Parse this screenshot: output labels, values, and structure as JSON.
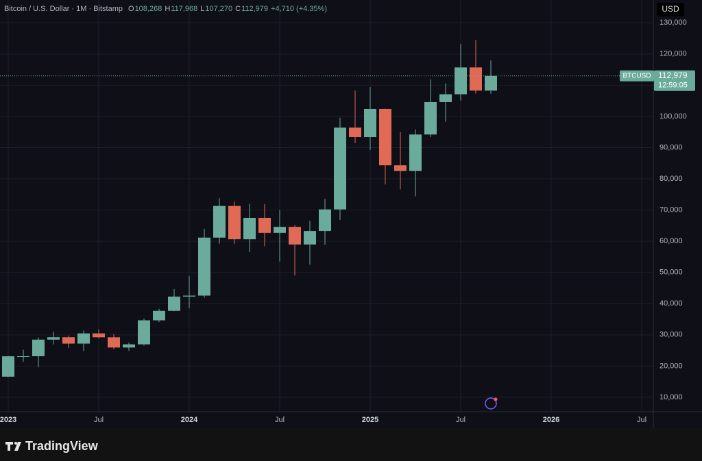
{
  "header": {
    "symbol": "Bitcoin / U.S. Dollar · 1M · Bitstamp",
    "ohlc": [
      {
        "key": "O",
        "value": "108,268"
      },
      {
        "key": "H",
        "value": "117,968"
      },
      {
        "key": "L",
        "value": "107,270"
      },
      {
        "key": "C",
        "value": "112,979"
      }
    ],
    "change": "+4,710 (+4.35%)"
  },
  "currency": "USD",
  "price_label": {
    "symbol": "BTCUSD",
    "price": "112,979",
    "countdown": "12:59:05"
  },
  "brand": "TradingView",
  "chart_data": {
    "type": "candlestick",
    "x": [
      "2023-01",
      "2023-02",
      "2023-03",
      "2023-04",
      "2023-05",
      "2023-06",
      "2023-07",
      "2023-08",
      "2023-09",
      "2023-10",
      "2023-11",
      "2023-12",
      "2024-01",
      "2024-02",
      "2024-03",
      "2024-04",
      "2024-05",
      "2024-06",
      "2024-07",
      "2024-08",
      "2024-09",
      "2024-10",
      "2024-11",
      "2024-12",
      "2025-01",
      "2025-02",
      "2025-03",
      "2025-04",
      "2025-05",
      "2025-06",
      "2025-07",
      "2025-08",
      "2025-09"
    ],
    "open": [
      16600,
      23130,
      23150,
      28470,
      29250,
      27200,
      30470,
      29230,
      25940,
      26960,
      34660,
      37700,
      42260,
      42580,
      61160,
      71300,
      60650,
      67500,
      62700,
      64600,
      58950,
      63300,
      70200,
      96400,
      93400,
      102400,
      84350,
      82500,
      94200,
      104600,
      107100,
      115700,
      108268
    ],
    "high": [
      23300,
      25250,
      29200,
      31000,
      29800,
      31400,
      31800,
      30200,
      27500,
      35200,
      38400,
      44700,
      48900,
      64000,
      73800,
      72700,
      72000,
      71950,
      70000,
      65100,
      66500,
      73600,
      99600,
      108300,
      109400,
      102500,
      95000,
      95800,
      111900,
      110600,
      123200,
      124500,
      117968
    ],
    "low": [
      16500,
      21400,
      19600,
      26950,
      25800,
      24800,
      28900,
      25350,
      24900,
      26560,
      34100,
      37600,
      38500,
      41900,
      59200,
      59100,
      56500,
      58400,
      53500,
      49000,
      52500,
      58900,
      66800,
      91400,
      89200,
      78200,
      76600,
      74400,
      93400,
      98300,
      105100,
      107300,
      107270
    ],
    "close": [
      23130,
      23150,
      28470,
      29250,
      27200,
      30470,
      29230,
      25940,
      26960,
      34660,
      37700,
      42260,
      42580,
      61160,
      71300,
      60650,
      67500,
      62700,
      64600,
      58950,
      63300,
      70200,
      96400,
      93400,
      102400,
      84350,
      82500,
      94200,
      104600,
      107100,
      115700,
      108268,
      112979
    ],
    "up_color": "#6aab9c",
    "down_color": "#e06a55",
    "ylim": [
      5600,
      137300
    ],
    "yticks": [
      {
        "value": 10000,
        "label": "10,000"
      },
      {
        "value": 20000,
        "label": "20,000"
      },
      {
        "value": 30000,
        "label": "30,000"
      },
      {
        "value": 40000,
        "label": "40,000"
      },
      {
        "value": 50000,
        "label": "50,000"
      },
      {
        "value": 60000,
        "label": "60,000"
      },
      {
        "value": 70000,
        "label": "70,000"
      },
      {
        "value": 80000,
        "label": "80,000"
      },
      {
        "value": 90000,
        "label": "90,000"
      },
      {
        "value": 100000,
        "label": "100,000"
      },
      {
        "value": 110000,
        "label": "110,000"
      },
      {
        "value": 120000,
        "label": "120,000"
      },
      {
        "value": 130000,
        "label": "130,000"
      }
    ],
    "xticks": [
      {
        "value": "2023-01",
        "label": "2023"
      },
      {
        "value": "2023-07",
        "label": "Jul"
      },
      {
        "value": "2024-01",
        "label": "2024"
      },
      {
        "value": "2024-07",
        "label": "Jul"
      },
      {
        "value": "2025-01",
        "label": "2025"
      },
      {
        "value": "2025-07",
        "label": "Jul"
      },
      {
        "value": "2026-01",
        "label": "2026"
      },
      {
        "value": "2026-07",
        "label": "Jul"
      }
    ],
    "grid": true
  }
}
